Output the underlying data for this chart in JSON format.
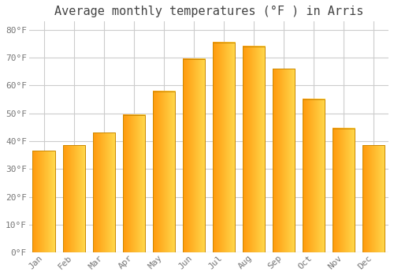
{
  "title": "Average monthly temperatures (°F ) in Arris",
  "months": [
    "Jan",
    "Feb",
    "Mar",
    "Apr",
    "May",
    "Jun",
    "Jul",
    "Aug",
    "Sep",
    "Oct",
    "Nov",
    "Dec"
  ],
  "values": [
    36.5,
    38.5,
    43,
    49.5,
    58,
    69.5,
    75.5,
    74,
    66,
    55,
    44.5,
    38.5
  ],
  "bar_color_bottom": "#FFA010",
  "bar_color_top": "#FFD060",
  "bar_border_color": "#CC8800",
  "ylim": [
    0,
    83
  ],
  "yticks": [
    0,
    10,
    20,
    30,
    40,
    50,
    60,
    70,
    80
  ],
  "ytick_labels": [
    "0°F",
    "10°F",
    "20°F",
    "30°F",
    "40°F",
    "50°F",
    "60°F",
    "70°F",
    "80°F"
  ],
  "background_color": "#FFFFFF",
  "grid_color": "#CCCCCC",
  "title_fontsize": 11,
  "tick_fontsize": 8,
  "title_color": "#444444",
  "tick_color": "#777777",
  "bar_width": 0.75
}
